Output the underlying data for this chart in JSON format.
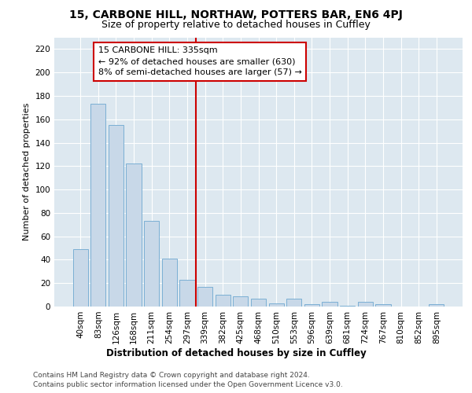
{
  "title1": "15, CARBONE HILL, NORTHAW, POTTERS BAR, EN6 4PJ",
  "title2": "Size of property relative to detached houses in Cuffley",
  "xlabel": "Distribution of detached houses by size in Cuffley",
  "ylabel": "Number of detached properties",
  "bar_color": "#c8d8e8",
  "bar_edge_color": "#7bafd4",
  "categories": [
    "40sqm",
    "83sqm",
    "126sqm",
    "168sqm",
    "211sqm",
    "254sqm",
    "297sqm",
    "339sqm",
    "382sqm",
    "425sqm",
    "468sqm",
    "510sqm",
    "553sqm",
    "596sqm",
    "639sqm",
    "681sqm",
    "724sqm",
    "767sqm",
    "810sqm",
    "852sqm",
    "895sqm"
  ],
  "values": [
    49,
    173,
    155,
    122,
    73,
    41,
    23,
    17,
    10,
    9,
    7,
    3,
    7,
    2,
    4,
    1,
    4,
    2,
    0,
    0,
    2
  ],
  "vline_index": 7,
  "marker_label": "15 CARBONE HILL: 335sqm",
  "annotation_line1": "← 92% of detached houses are smaller (630)",
  "annotation_line2": "8% of semi-detached houses are larger (57) →",
  "vline_color": "#cc0000",
  "annotation_box_color": "#ffffff",
  "annotation_box_edge_color": "#cc0000",
  "footnote1": "Contains HM Land Registry data © Crown copyright and database right 2024.",
  "footnote2": "Contains public sector information licensed under the Open Government Licence v3.0.",
  "background_color": "#dde8f0",
  "ylim": [
    0,
    230
  ],
  "title1_fontsize": 10,
  "title2_fontsize": 9,
  "xlabel_fontsize": 8.5,
  "ylabel_fontsize": 8,
  "tick_fontsize": 7.5,
  "annotation_fontsize": 8,
  "footnote_fontsize": 6.5
}
